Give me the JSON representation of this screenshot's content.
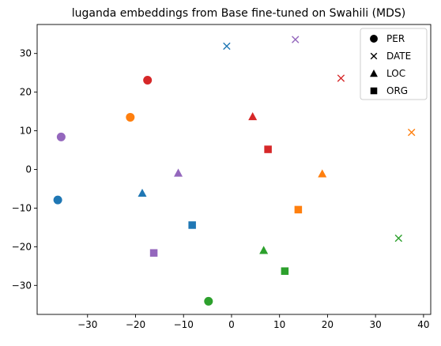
{
  "chart_data": {
    "type": "scatter",
    "title": "luganda embeddings from Base fine-tuned on Swahili (MDS)",
    "xlabel": "",
    "ylabel": "",
    "xlim": [
      -40.5,
      41.5
    ],
    "ylim": [
      -37.5,
      37.5
    ],
    "xticks": [
      -30,
      -20,
      -10,
      0,
      10,
      20,
      30,
      40
    ],
    "yticks": [
      -30,
      -20,
      -10,
      0,
      10,
      20,
      30
    ],
    "xtick_labels": [
      "−30",
      "−20",
      "−10",
      "0",
      "10",
      "20",
      "30",
      "40"
    ],
    "ytick_labels": [
      "−30",
      "−20",
      "−10",
      "0",
      "10",
      "20",
      "30"
    ],
    "grid": false,
    "legend": {
      "placement": "top-right",
      "entries": [
        {
          "label": "PER",
          "marker": "circle"
        },
        {
          "label": "DATE",
          "marker": "x"
        },
        {
          "label": "LOC",
          "marker": "triangle"
        },
        {
          "label": "ORG",
          "marker": "square"
        }
      ]
    },
    "colors": {
      "c0": "#1f77b4",
      "c1": "#ff7f0e",
      "c2": "#2ca02c",
      "c3": "#d62728",
      "c4": "#9467bd"
    },
    "points": [
      {
        "category": "PER",
        "marker": "circle",
        "color": "c0",
        "x": -36.2,
        "y": -7.9
      },
      {
        "category": "PER",
        "marker": "circle",
        "color": "c1",
        "x": -21.1,
        "y": 13.5
      },
      {
        "category": "PER",
        "marker": "circle",
        "color": "c2",
        "x": -4.8,
        "y": -34.1
      },
      {
        "category": "PER",
        "marker": "circle",
        "color": "c3",
        "x": -17.5,
        "y": 23.1
      },
      {
        "category": "PER",
        "marker": "circle",
        "color": "c4",
        "x": -35.5,
        "y": 8.4
      },
      {
        "category": "DATE",
        "marker": "x",
        "color": "c0",
        "x": -1.0,
        "y": 31.9
      },
      {
        "category": "DATE",
        "marker": "x",
        "color": "c1",
        "x": 37.5,
        "y": 9.6
      },
      {
        "category": "DATE",
        "marker": "x",
        "color": "c2",
        "x": 34.8,
        "y": -17.8
      },
      {
        "category": "DATE",
        "marker": "x",
        "color": "c3",
        "x": 22.8,
        "y": 23.6
      },
      {
        "category": "DATE",
        "marker": "x",
        "color": "c4",
        "x": 13.3,
        "y": 33.6
      },
      {
        "category": "LOC",
        "marker": "triangle",
        "color": "c0",
        "x": -18.6,
        "y": -6.1
      },
      {
        "category": "LOC",
        "marker": "triangle",
        "color": "c1",
        "x": 18.9,
        "y": -1.1
      },
      {
        "category": "LOC",
        "marker": "triangle",
        "color": "c2",
        "x": 6.7,
        "y": -20.9
      },
      {
        "category": "LOC",
        "marker": "triangle",
        "color": "c3",
        "x": 4.4,
        "y": 13.7
      },
      {
        "category": "LOC",
        "marker": "triangle",
        "color": "c4",
        "x": -11.1,
        "y": -0.9
      },
      {
        "category": "ORG",
        "marker": "square",
        "color": "c0",
        "x": -8.2,
        "y": -14.4
      },
      {
        "category": "ORG",
        "marker": "square",
        "color": "c1",
        "x": 13.9,
        "y": -10.4
      },
      {
        "category": "ORG",
        "marker": "square",
        "color": "c2",
        "x": 11.1,
        "y": -26.3
      },
      {
        "category": "ORG",
        "marker": "square",
        "color": "c3",
        "x": 7.6,
        "y": 5.2
      },
      {
        "category": "ORG",
        "marker": "square",
        "color": "c4",
        "x": -16.2,
        "y": -21.6
      }
    ]
  }
}
